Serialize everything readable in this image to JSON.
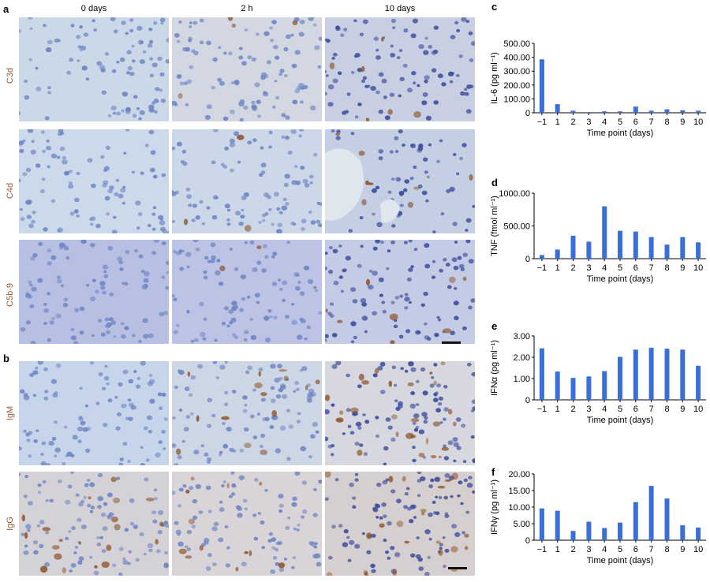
{
  "panels": {
    "a": "a",
    "b": "b",
    "c": "c",
    "d": "d",
    "e": "e",
    "f": "f"
  },
  "columns": [
    "0 days",
    "2 h",
    "10 days"
  ],
  "rows_a": [
    "C3d",
    "C4d",
    "C5b-9"
  ],
  "rows_b": [
    "IgM",
    "IgG"
  ],
  "colors": {
    "bar": "#3a6fd8",
    "stain": "#9a5a32",
    "tissue": "#c9d6e6",
    "nucleus": "#4c5fa8"
  },
  "chart_data": [
    {
      "id": "c",
      "type": "bar",
      "categories": [
        "−1",
        "1",
        "2",
        "3",
        "4",
        "5",
        "6",
        "7",
        "8",
        "9",
        "10"
      ],
      "values": [
        385,
        62,
        15,
        5,
        10,
        10,
        45,
        15,
        25,
        18,
        15
      ],
      "ylim": [
        0,
        500
      ],
      "yticks": [
        "500.00",
        "400.00",
        "300.00",
        "200.00",
        "100.00",
        "0"
      ],
      "ytick_values": [
        500,
        400,
        300,
        200,
        100,
        0
      ],
      "xlabel": "Time point (days)",
      "ylabel": "IL-6 (pg ml⁻¹)"
    },
    {
      "id": "d",
      "type": "bar",
      "categories": [
        "−1",
        "1",
        "2",
        "3",
        "4",
        "5",
        "6",
        "7",
        "8",
        "9",
        "10"
      ],
      "values": [
        55,
        140,
        350,
        260,
        800,
        425,
        415,
        330,
        215,
        330,
        250
      ],
      "ylim": [
        0,
        1000
      ],
      "yticks": [
        "1000.00",
        "500.00",
        "0"
      ],
      "ytick_values": [
        1000,
        500,
        0
      ],
      "xlabel": "Time point (days)",
      "ylabel": "TNF (fmol ml⁻¹)"
    },
    {
      "id": "e",
      "type": "bar",
      "categories": [
        "−1",
        "1",
        "2",
        "3",
        "4",
        "5",
        "6",
        "7",
        "8",
        "9",
        "10"
      ],
      "values": [
        2.42,
        1.33,
        1.03,
        1.1,
        1.35,
        2.02,
        2.36,
        2.45,
        2.4,
        2.36,
        1.6
      ],
      "ylim": [
        0,
        3
      ],
      "yticks": [
        "3.00",
        "2.00",
        "1.00",
        "0"
      ],
      "ytick_values": [
        3,
        2,
        1,
        0
      ],
      "xlabel": "Time point (days)",
      "ylabel": "IFNα (pg ml⁻¹)"
    },
    {
      "id": "f",
      "type": "bar",
      "categories": [
        "−1",
        "1",
        "2",
        "3",
        "4",
        "5",
        "6",
        "7",
        "8",
        "9",
        "10"
      ],
      "values": [
        9.6,
        8.9,
        2.8,
        5.6,
        3.7,
        5.3,
        11.5,
        16.4,
        12.6,
        4.5,
        3.8
      ],
      "ylim": [
        0,
        20
      ],
      "yticks": [
        "20.00",
        "15.00",
        "10.00",
        "5.00",
        "0"
      ],
      "ytick_values": [
        20,
        15,
        10,
        5,
        0
      ],
      "xlabel": "Time point (days)",
      "ylabel": "IFNγ (pg ml⁻¹)"
    }
  ]
}
